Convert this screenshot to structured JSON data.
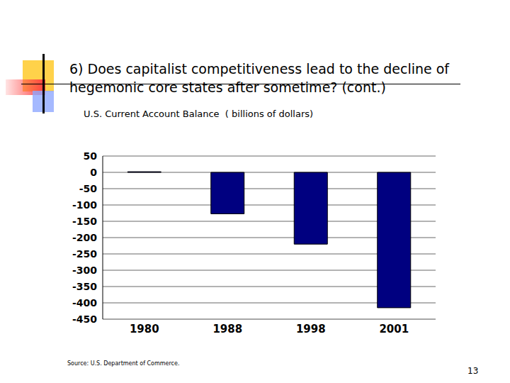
{
  "chart_data": {
    "type": "bar",
    "title": "6)  Does capitalist competitiveness lead to the decline of hegemonic core states after sometime? (cont.)",
    "subtitle": "U.S. Current Account Balance  ( billions of dollars)",
    "annotations": [
      "Source: U.S. Department of Commerce."
    ],
    "categories": [
      "1980",
      "1988",
      "1998",
      "2001"
    ],
    "values": [
      2,
      -127,
      -220,
      -415
    ],
    "color": "#000080",
    "ylim": [
      -450,
      50
    ],
    "yticks": [
      -450,
      -400,
      -350,
      -300,
      -250,
      -200,
      -150,
      -100,
      -50,
      0,
      50
    ],
    "grid": true
  },
  "slide": {
    "page": "13"
  }
}
